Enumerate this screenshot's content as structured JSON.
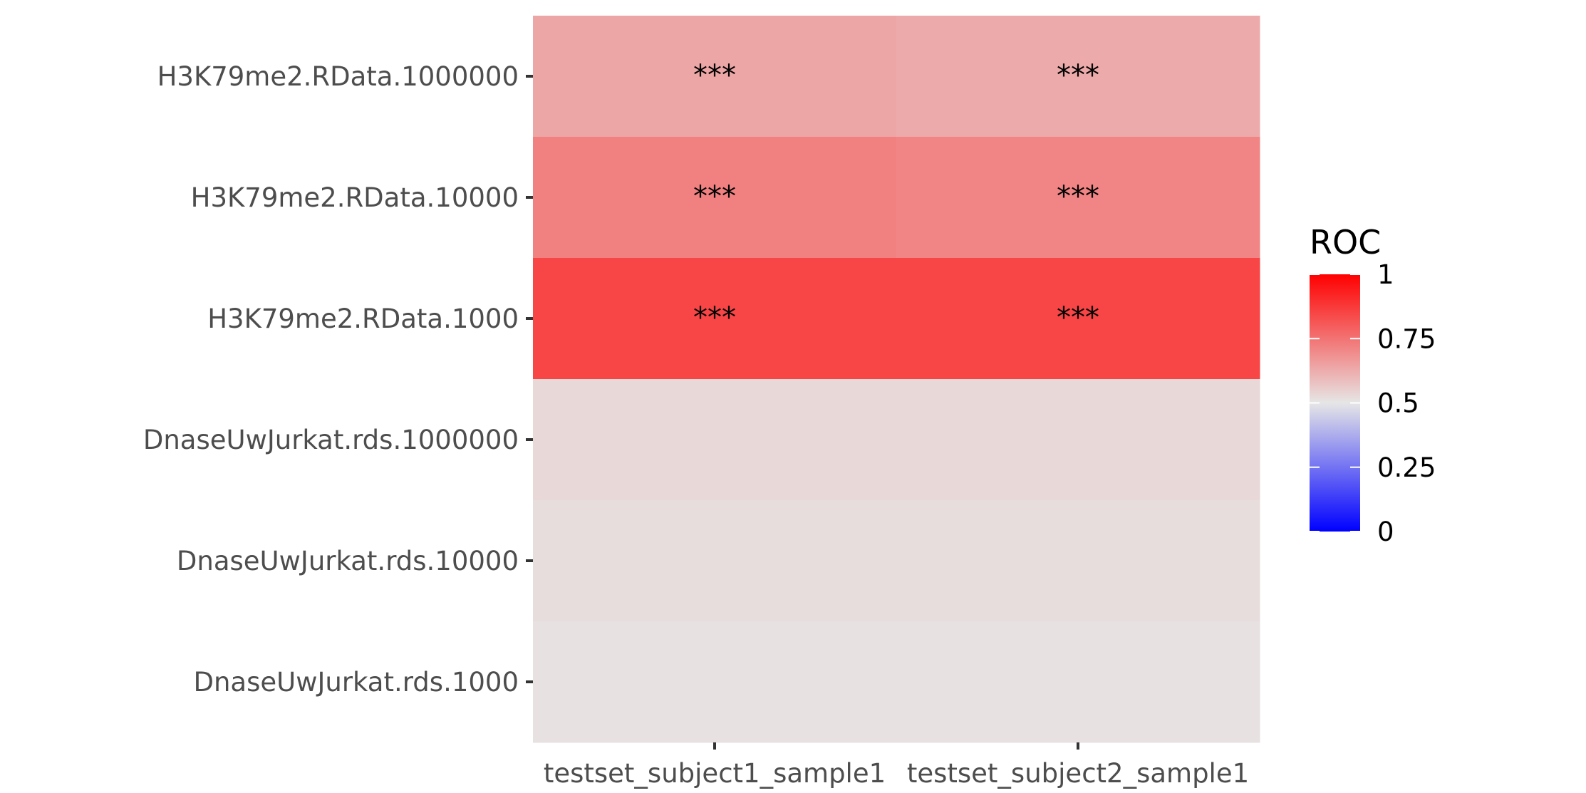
{
  "chart_data": {
    "type": "heatmap",
    "title": "",
    "xlabel": "",
    "ylabel": "",
    "x_categories": [
      "testset_subject1_sample1",
      "testset_subject2_sample1"
    ],
    "y_categories": [
      "H3K79me2.RData.1000000",
      "H3K79me2.RData.10000",
      "H3K79me2.RData.1000",
      "DnaseUwJurkat.rds.1000000",
      "DnaseUwJurkat.rds.10000",
      "DnaseUwJurkat.rds.1000"
    ],
    "values": [
      [
        0.64,
        0.63
      ],
      [
        0.72,
        0.71
      ],
      [
        0.85,
        0.85
      ],
      [
        0.53,
        0.53
      ],
      [
        0.52,
        0.52
      ],
      [
        0.51,
        0.51
      ]
    ],
    "annotations": [
      [
        "***",
        "***"
      ],
      [
        "***",
        "***"
      ],
      [
        "***",
        "***"
      ],
      [
        "",
        ""
      ],
      [
        "",
        ""
      ],
      [
        "",
        ""
      ]
    ],
    "legend": {
      "title": "ROC",
      "position": "right",
      "breaks": [
        1,
        0.75,
        0.5,
        0.25,
        0
      ],
      "break_labels": [
        "1",
        "0.75",
        "0.5",
        "0.25",
        "0"
      ],
      "range": [
        0,
        1
      ],
      "low_color": "#0000FF",
      "mid_color": "#E6E6E6",
      "high_color": "#FF0000",
      "midpoint": 0.5
    },
    "grid": false
  }
}
